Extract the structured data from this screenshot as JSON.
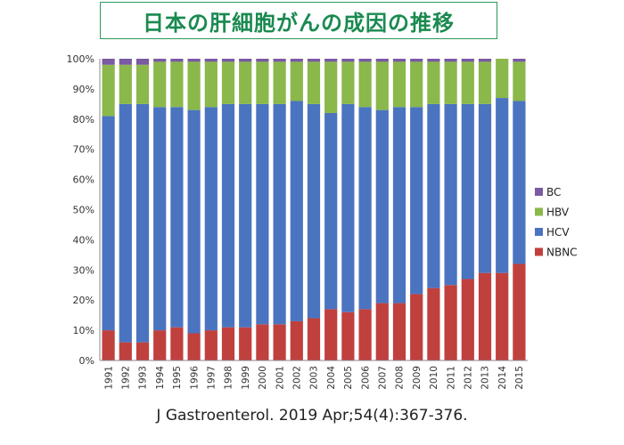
{
  "chart_data": {
    "type": "bar",
    "stacked": true,
    "title": "日本の肝細胞がんの成因の推移",
    "categories": [
      "1991",
      "1992",
      "1993",
      "1994",
      "1995",
      "1996",
      "1997",
      "1998",
      "1999",
      "2000",
      "2001",
      "2002",
      "2003",
      "2004",
      "2005",
      "2006",
      "2007",
      "2008",
      "2009",
      "2010",
      "2011",
      "2012",
      "2013",
      "2014",
      "2015"
    ],
    "series": [
      {
        "name": "NBNC",
        "color": "#c0403e",
        "values": [
          10,
          6,
          6,
          10,
          11,
          9,
          10,
          11,
          11,
          12,
          12,
          13,
          14,
          17,
          16,
          17,
          19,
          19,
          22,
          24,
          25,
          27,
          29,
          29,
          32
        ]
      },
      {
        "name": "HCV",
        "color": "#4a74c0",
        "values": [
          71,
          79,
          79,
          74,
          73,
          74,
          74,
          74,
          74,
          73,
          73,
          73,
          71,
          65,
          69,
          67,
          64,
          65,
          62,
          61,
          60,
          58,
          56,
          58,
          54
        ]
      },
      {
        "name": "HBV",
        "color": "#8ab84a",
        "values": [
          17,
          13,
          13,
          15,
          15,
          16,
          15,
          14,
          14,
          14,
          14,
          13,
          14,
          17,
          14,
          15,
          16,
          15,
          15,
          14,
          14,
          14,
          14,
          13,
          13
        ]
      },
      {
        "name": "BC",
        "color": "#7a5aa0",
        "values": [
          2,
          2,
          2,
          1,
          1,
          1,
          1,
          1,
          1,
          1,
          1,
          1,
          1,
          1,
          1,
          1,
          1,
          1,
          1,
          1,
          1,
          1,
          1,
          0,
          1
        ]
      }
    ],
    "ylim": [
      0,
      100
    ],
    "yticks": [
      "0%",
      "10%",
      "20%",
      "30%",
      "40%",
      "50%",
      "60%",
      "70%",
      "80%",
      "90%",
      "100%"
    ],
    "legend_position": "right",
    "legend_order": [
      "BC",
      "HBV",
      "HCV",
      "NBNC"
    ],
    "grid": false
  },
  "source_citation": "J Gastroenterol. 2019 Apr;54(4):367-376."
}
